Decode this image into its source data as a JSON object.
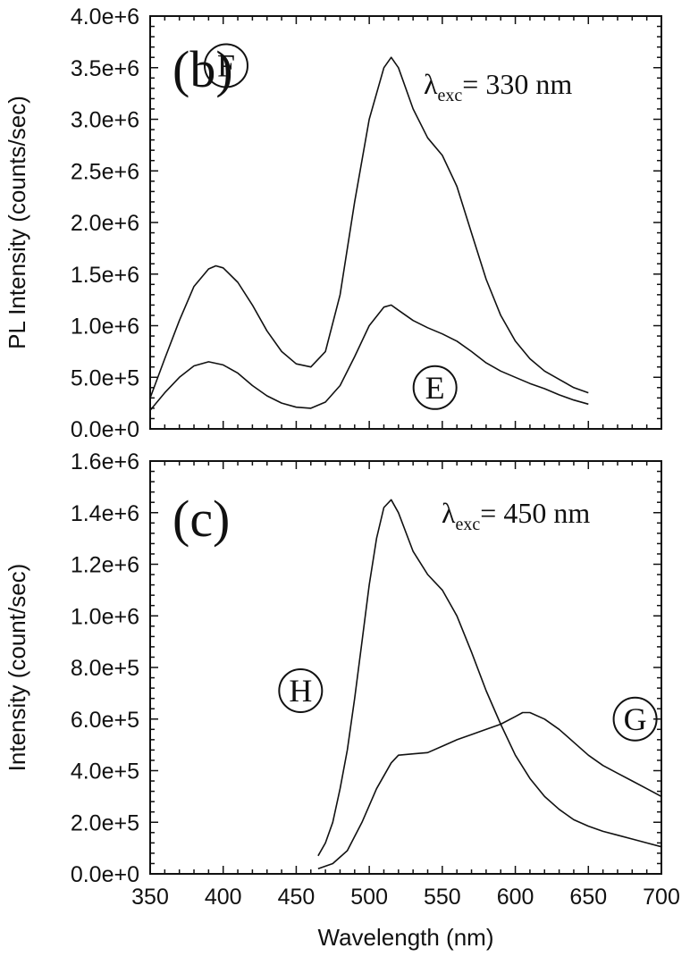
{
  "chart_data": [
    {
      "type": "line",
      "panel_label": "(b)",
      "annotation": {
        "symbol": "λ",
        "subscript": "exc",
        "text": "= 330 nm"
      },
      "ylabel": "PL Intensity (counts/sec)",
      "xlabel": "",
      "xlim": [
        350,
        700
      ],
      "ylim": [
        0,
        4000000
      ],
      "y_ticks": [
        "0.0e+0",
        "5.0e+5",
        "1.0e+6",
        "1.5e+6",
        "2.0e+6",
        "2.5e+6",
        "3.0e+6",
        "3.5e+6",
        "4.0e+6"
      ],
      "y_tick_values": [
        0,
        500000,
        1000000,
        1500000,
        2000000,
        2500000,
        3000000,
        3500000,
        4000000
      ],
      "grid": false,
      "series": [
        {
          "name": "F",
          "label_at": [
            402,
            3520000
          ],
          "points": [
            [
              350,
              300000
            ],
            [
              360,
              680000
            ],
            [
              370,
              1050000
            ],
            [
              380,
              1380000
            ],
            [
              390,
              1550000
            ],
            [
              395,
              1580000
            ],
            [
              400,
              1560000
            ],
            [
              410,
              1420000
            ],
            [
              420,
              1200000
            ],
            [
              430,
              950000
            ],
            [
              440,
              750000
            ],
            [
              450,
              630000
            ],
            [
              460,
              600000
            ],
            [
              470,
              750000
            ],
            [
              480,
              1300000
            ],
            [
              490,
              2200000
            ],
            [
              500,
              3000000
            ],
            [
              510,
              3500000
            ],
            [
              515,
              3600000
            ],
            [
              520,
              3500000
            ],
            [
              530,
              3100000
            ],
            [
              540,
              2820000
            ],
            [
              550,
              2650000
            ],
            [
              560,
              2350000
            ],
            [
              570,
              1900000
            ],
            [
              580,
              1450000
            ],
            [
              590,
              1100000
            ],
            [
              600,
              850000
            ],
            [
              610,
              680000
            ],
            [
              620,
              560000
            ],
            [
              630,
              480000
            ],
            [
              640,
              400000
            ],
            [
              650,
              350000
            ]
          ]
        },
        {
          "name": "E",
          "label_at": [
            545,
            400000
          ],
          "points": [
            [
              350,
              180000
            ],
            [
              360,
              350000
            ],
            [
              370,
              500000
            ],
            [
              380,
              610000
            ],
            [
              390,
              650000
            ],
            [
              400,
              620000
            ],
            [
              410,
              540000
            ],
            [
              420,
              420000
            ],
            [
              430,
              320000
            ],
            [
              440,
              250000
            ],
            [
              450,
              210000
            ],
            [
              460,
              200000
            ],
            [
              470,
              260000
            ],
            [
              480,
              420000
            ],
            [
              490,
              700000
            ],
            [
              500,
              1000000
            ],
            [
              510,
              1180000
            ],
            [
              515,
              1200000
            ],
            [
              520,
              1150000
            ],
            [
              530,
              1050000
            ],
            [
              540,
              980000
            ],
            [
              550,
              920000
            ],
            [
              560,
              850000
            ],
            [
              570,
              750000
            ],
            [
              580,
              640000
            ],
            [
              590,
              560000
            ],
            [
              600,
              500000
            ],
            [
              610,
              440000
            ],
            [
              620,
              390000
            ],
            [
              630,
              330000
            ],
            [
              640,
              280000
            ],
            [
              650,
              240000
            ]
          ]
        }
      ]
    },
    {
      "type": "line",
      "panel_label": "(c)",
      "annotation": {
        "symbol": "λ",
        "subscript": "exc",
        "text": "= 450 nm"
      },
      "ylabel": "Intensity (count/sec)",
      "xlabel": "Wavelength (nm)",
      "xlim": [
        350,
        700
      ],
      "ylim": [
        0,
        1600000
      ],
      "x_ticks": [
        "350",
        "400",
        "450",
        "500",
        "550",
        "600",
        "650",
        "700"
      ],
      "x_tick_values": [
        350,
        400,
        450,
        500,
        550,
        600,
        650,
        700
      ],
      "y_ticks": [
        "0.0e+0",
        "2.0e+5",
        "4.0e+5",
        "6.0e+5",
        "8.0e+5",
        "1.0e+6",
        "1.2e+6",
        "1.4e+6",
        "1.6e+6"
      ],
      "y_tick_values": [
        0,
        200000,
        400000,
        600000,
        800000,
        1000000,
        1200000,
        1400000,
        1600000
      ],
      "grid": false,
      "series": [
        {
          "name": "H",
          "label_at": [
            453,
            710000
          ],
          "points": [
            [
              465,
              70000
            ],
            [
              470,
              120000
            ],
            [
              475,
              200000
            ],
            [
              480,
              330000
            ],
            [
              485,
              480000
            ],
            [
              490,
              680000
            ],
            [
              495,
              900000
            ],
            [
              500,
              1120000
            ],
            [
              505,
              1300000
            ],
            [
              510,
              1420000
            ],
            [
              515,
              1450000
            ],
            [
              520,
              1400000
            ],
            [
              530,
              1250000
            ],
            [
              540,
              1160000
            ],
            [
              550,
              1100000
            ],
            [
              560,
              1000000
            ],
            [
              570,
              860000
            ],
            [
              580,
              710000
            ],
            [
              590,
              580000
            ],
            [
              600,
              460000
            ],
            [
              610,
              370000
            ],
            [
              620,
              300000
            ],
            [
              630,
              250000
            ],
            [
              640,
              210000
            ],
            [
              650,
              185000
            ],
            [
              660,
              165000
            ],
            [
              670,
              150000
            ],
            [
              680,
              135000
            ],
            [
              690,
              120000
            ],
            [
              700,
              105000
            ]
          ]
        },
        {
          "name": "G",
          "label_at": [
            682,
            600000
          ],
          "points": [
            [
              465,
              20000
            ],
            [
              475,
              40000
            ],
            [
              485,
              90000
            ],
            [
              495,
              200000
            ],
            [
              505,
              330000
            ],
            [
              515,
              430000
            ],
            [
              520,
              460000
            ],
            [
              530,
              465000
            ],
            [
              540,
              470000
            ],
            [
              550,
              495000
            ],
            [
              560,
              520000
            ],
            [
              570,
              540000
            ],
            [
              580,
              560000
            ],
            [
              590,
              580000
            ],
            [
              600,
              610000
            ],
            [
              605,
              625000
            ],
            [
              610,
              625000
            ],
            [
              620,
              600000
            ],
            [
              630,
              560000
            ],
            [
              640,
              510000
            ],
            [
              650,
              460000
            ],
            [
              660,
              420000
            ],
            [
              670,
              390000
            ],
            [
              680,
              360000
            ],
            [
              690,
              330000
            ],
            [
              700,
              300000
            ]
          ]
        }
      ]
    }
  ]
}
